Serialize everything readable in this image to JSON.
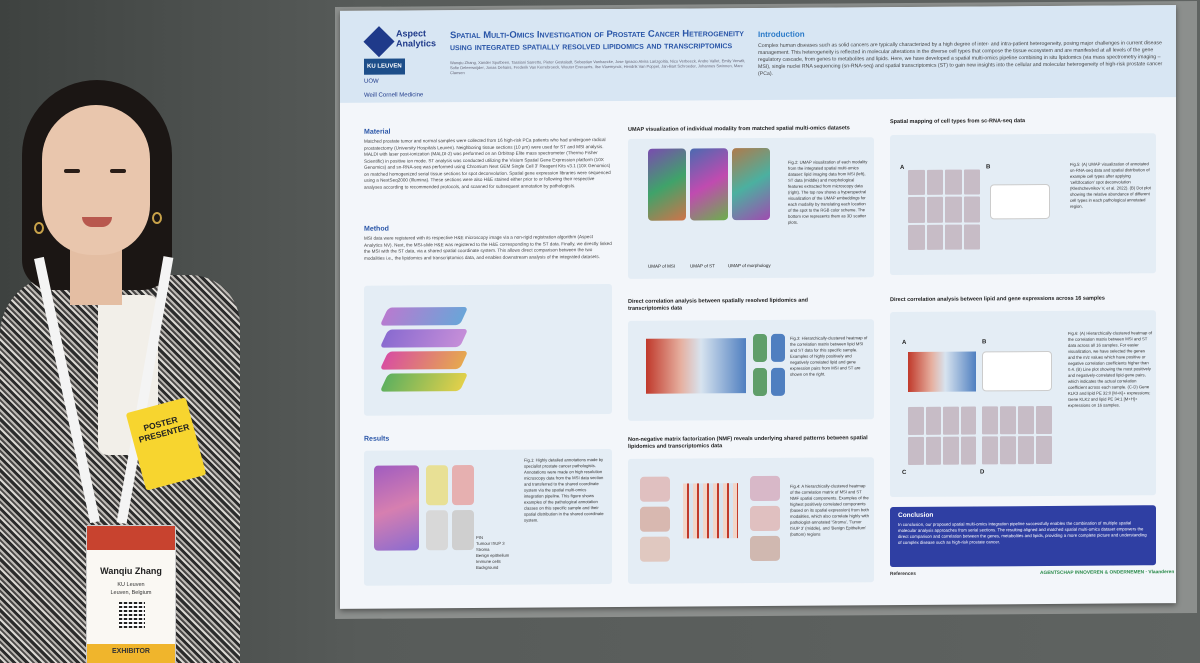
{
  "poster": {
    "logo": "Aspect Analytics",
    "sponsors": [
      "KU LEUVEN",
      "UOW",
      "Weill Cornell Medicine"
    ],
    "title": "Spatial Multi-Omics Investigation of Prostate Cancer Heterogeneity using integrated spatially resolved lipidomics and transcriptomics",
    "authors": "Wanqiu Zhang, Xander Spotbeen, Tassiani Sarretto, Pieter Gestaladt, Sebastian Vanhaecke, Jose Ignacio Alvira Larizgoitia, Nico Verbeeck, Andre Vallet, Emily Verwilt, Sofie Deleersnijder, Jonas Dehairs, Frederik Van Kerrebroeck, Wouter Everaerts, Ilse Vlaemynck, Hendrik Van Poppel, Jan-Bart Schroeder, Johannes Swinnen, Marc Claesen",
    "intro_heading": "Introduction",
    "intro_text": "Complex human diseases such as solid cancers are typically characterized by a high degree of inter- and intra-patient heterogeneity, posing major challenges in current disease management. This heterogeneity is reflected in molecular alterations in the diverse cell types that compose the tissue ecosystem and are manifested at all levels of the gene regulatory cascade, from genes to metabolites and lipids. Here, we have developed a spatial multi-omics pipeline combining in situ lipidomics (via mass spectrometry imaging – MSI), single nuclei RNA sequencing (sn-RNA-seq) and spatial transcriptomics (ST) to gain new insights into the cellular and molecular heterogeneity of high-risk prostate cancer (PCa).",
    "material_heading": "Material",
    "material_text": "Matched prostate tumor and normal samples were collected from 16 high-risk PCa patients who had undergone radical prostatectomy (University Hospitals Leuven). Neighboring tissue sections (10 μm) were used for ST and MSI analysis. MALDI with laser post-ionization (MALDI-2) was performed on an Orbitrap Elite mass spectrometer (Thermo Fisher Scientific) in positive ion mode. ST analysis was conducted utilizing the Visium Spatial Gene Expression platform (10X Genomics) and sn-RNA-seq was performed using Chromium Next GEM Single Cell 3' Reagent Kits v3.1 (10X Genomics) on matched homogenized serial tissue sections for spot deconvolution. Spatial gene expression libraries were sequenced using a NextSeq2000 (Illumina). These sections were also H&E stained either prior to or following their respective analyses according to recommended protocols, and scanned for subsequent annotation by pathologists.",
    "method_heading": "Method",
    "method_text": "MSI data were registered with its respective H&E microscopy image via a non-rigid registration algorithm (Aspect Analytics NV). Next, the MSI-slide H&E was registered to the H&E corresponding to the ST data. Finally, we directly linked the MSI with the ST data, via a shared spatial coordinate system. This allows direct comparison between the two modalities i.e., the lipidomics and transcriptomics data, and enables downstream analysis of the integrated datasets.",
    "results_heading": "Results",
    "fig1_caption": "Fig.1: Highly detailed annotations made by specialist prostate cancer pathologists. Annotations were made on high resolution microscopy data from the MSI data section and transferred to the shared coordinate system via the spatial multi-omics integration pipeline. This figure shows examples of the pathological annotation classes on this specific sample and their spatial distribution in the shared coordinate system.",
    "fig1_legend": [
      "PIN",
      "Tumour ISUP 3",
      "Stroma",
      "Benign epithelium",
      "Immune cells",
      "Background"
    ],
    "umap_title": "UMAP visualization of individual modality from matched spatial multi-omics datasets",
    "umap_labels": [
      "UMAP of MSI",
      "UMAP of ST",
      "UMAP of morphology"
    ],
    "fig2_caption": "Fig.2: UMAP visualization of each modality from the integrated spatial multi-omics dataset: lipid imaging data from MSI (left), ST data (middle) and morphological features extracted from microscopy data (right). The top row shows a hyperspectral visualization of the UMAP embeddings for each modality by translating each location of the spot to the RGB color scheme. The bottom row represents them as 3D scatter plots.",
    "corr_title": "Direct correlation analysis between spatially resolved lipidomics and transcriptomics data",
    "fig3_caption": "Fig.3: Hierarchically-clustered heatmap of the correlation matrix between lipid MSI and ST data for this specific sample. Examples of highly positively and negatively correlated lipid and gene expression pairs from MSI and ST are shown on the right.",
    "nmf_title": "Non-negative matrix factorization (NMF) reveals underlying shared patterns between spatial lipidomics and transcriptomics data",
    "fig4_caption": "Fig.4: A hierarchically-clustered heatmap of the correlation matrix of MSI and ST NMF spatial components. Examples of the highest positively correlated components (based on its spatial expression) from both modalities, which also correlate highly with pathologist-annotated 'Stroma', 'Tumor ISUP 3' (middle), and 'Benign Epithelium' (bottom) regions",
    "cell_title": "Spatial mapping of cell types from sc-RNA-seq data",
    "fig5_caption": "Fig.5: (A) UMAP visualization of annotated sn-RNA-seq data and spatial distribution of example cell types after applying 'cell2location' spot deconvolution (Kleshchevnikov V, et al. 2022). (B) Dot plot showing the relative abundance of different cell types in each pathological annotated region.",
    "lipid16_title": "Direct correlation analysis between lipid and gene expressions across 16 samples",
    "fig6_caption": "Fig.6: (A) Hierarchically-clustered heatmap of the correlation matrix between MSI and ST data across all 16 samples. For easier visualization, we have selected the genes and the m/z values which have positive or negative correlation coefficients higher than 0.4. (B) Line plot showing the most positively and negatively-correlated lipid-gene pairs, which indicates the actual correlation coefficient across each sample. (C-D) Gene KLK3 and lipid PE 32:0 [M+K]+ expressions; Gene KLK2 and lipid PE 34:1 [M+H]+ expressions on 16 samples.",
    "panel_letters": [
      "A",
      "B",
      "C",
      "D"
    ],
    "conclusion_heading": "Conclusion",
    "conclusion_text": "In conclusion, our proposed spatial multi-omics integration pipeline successfully enables the combination of multiple spatial molecular analysis approaches from serial sections. The resulting aligned and matched spatial multi-omics dataset empowers the direct comparison and correlation between the genes, metabolites and lipids, providing a more complete picture and understanding of complex disease such as high-risk prostate cancer.",
    "references_heading": "References",
    "funder": "AGENTSCHAP INNOVEREN & ONDERNEMEN · Vlaanderen"
  },
  "badge": {
    "ribbon": "POSTER PRESENTER",
    "name": "Wanqiu Zhang",
    "org": "KU Leuven",
    "location": "Leuven, Belgium",
    "role": "EXHIBITOR"
  }
}
